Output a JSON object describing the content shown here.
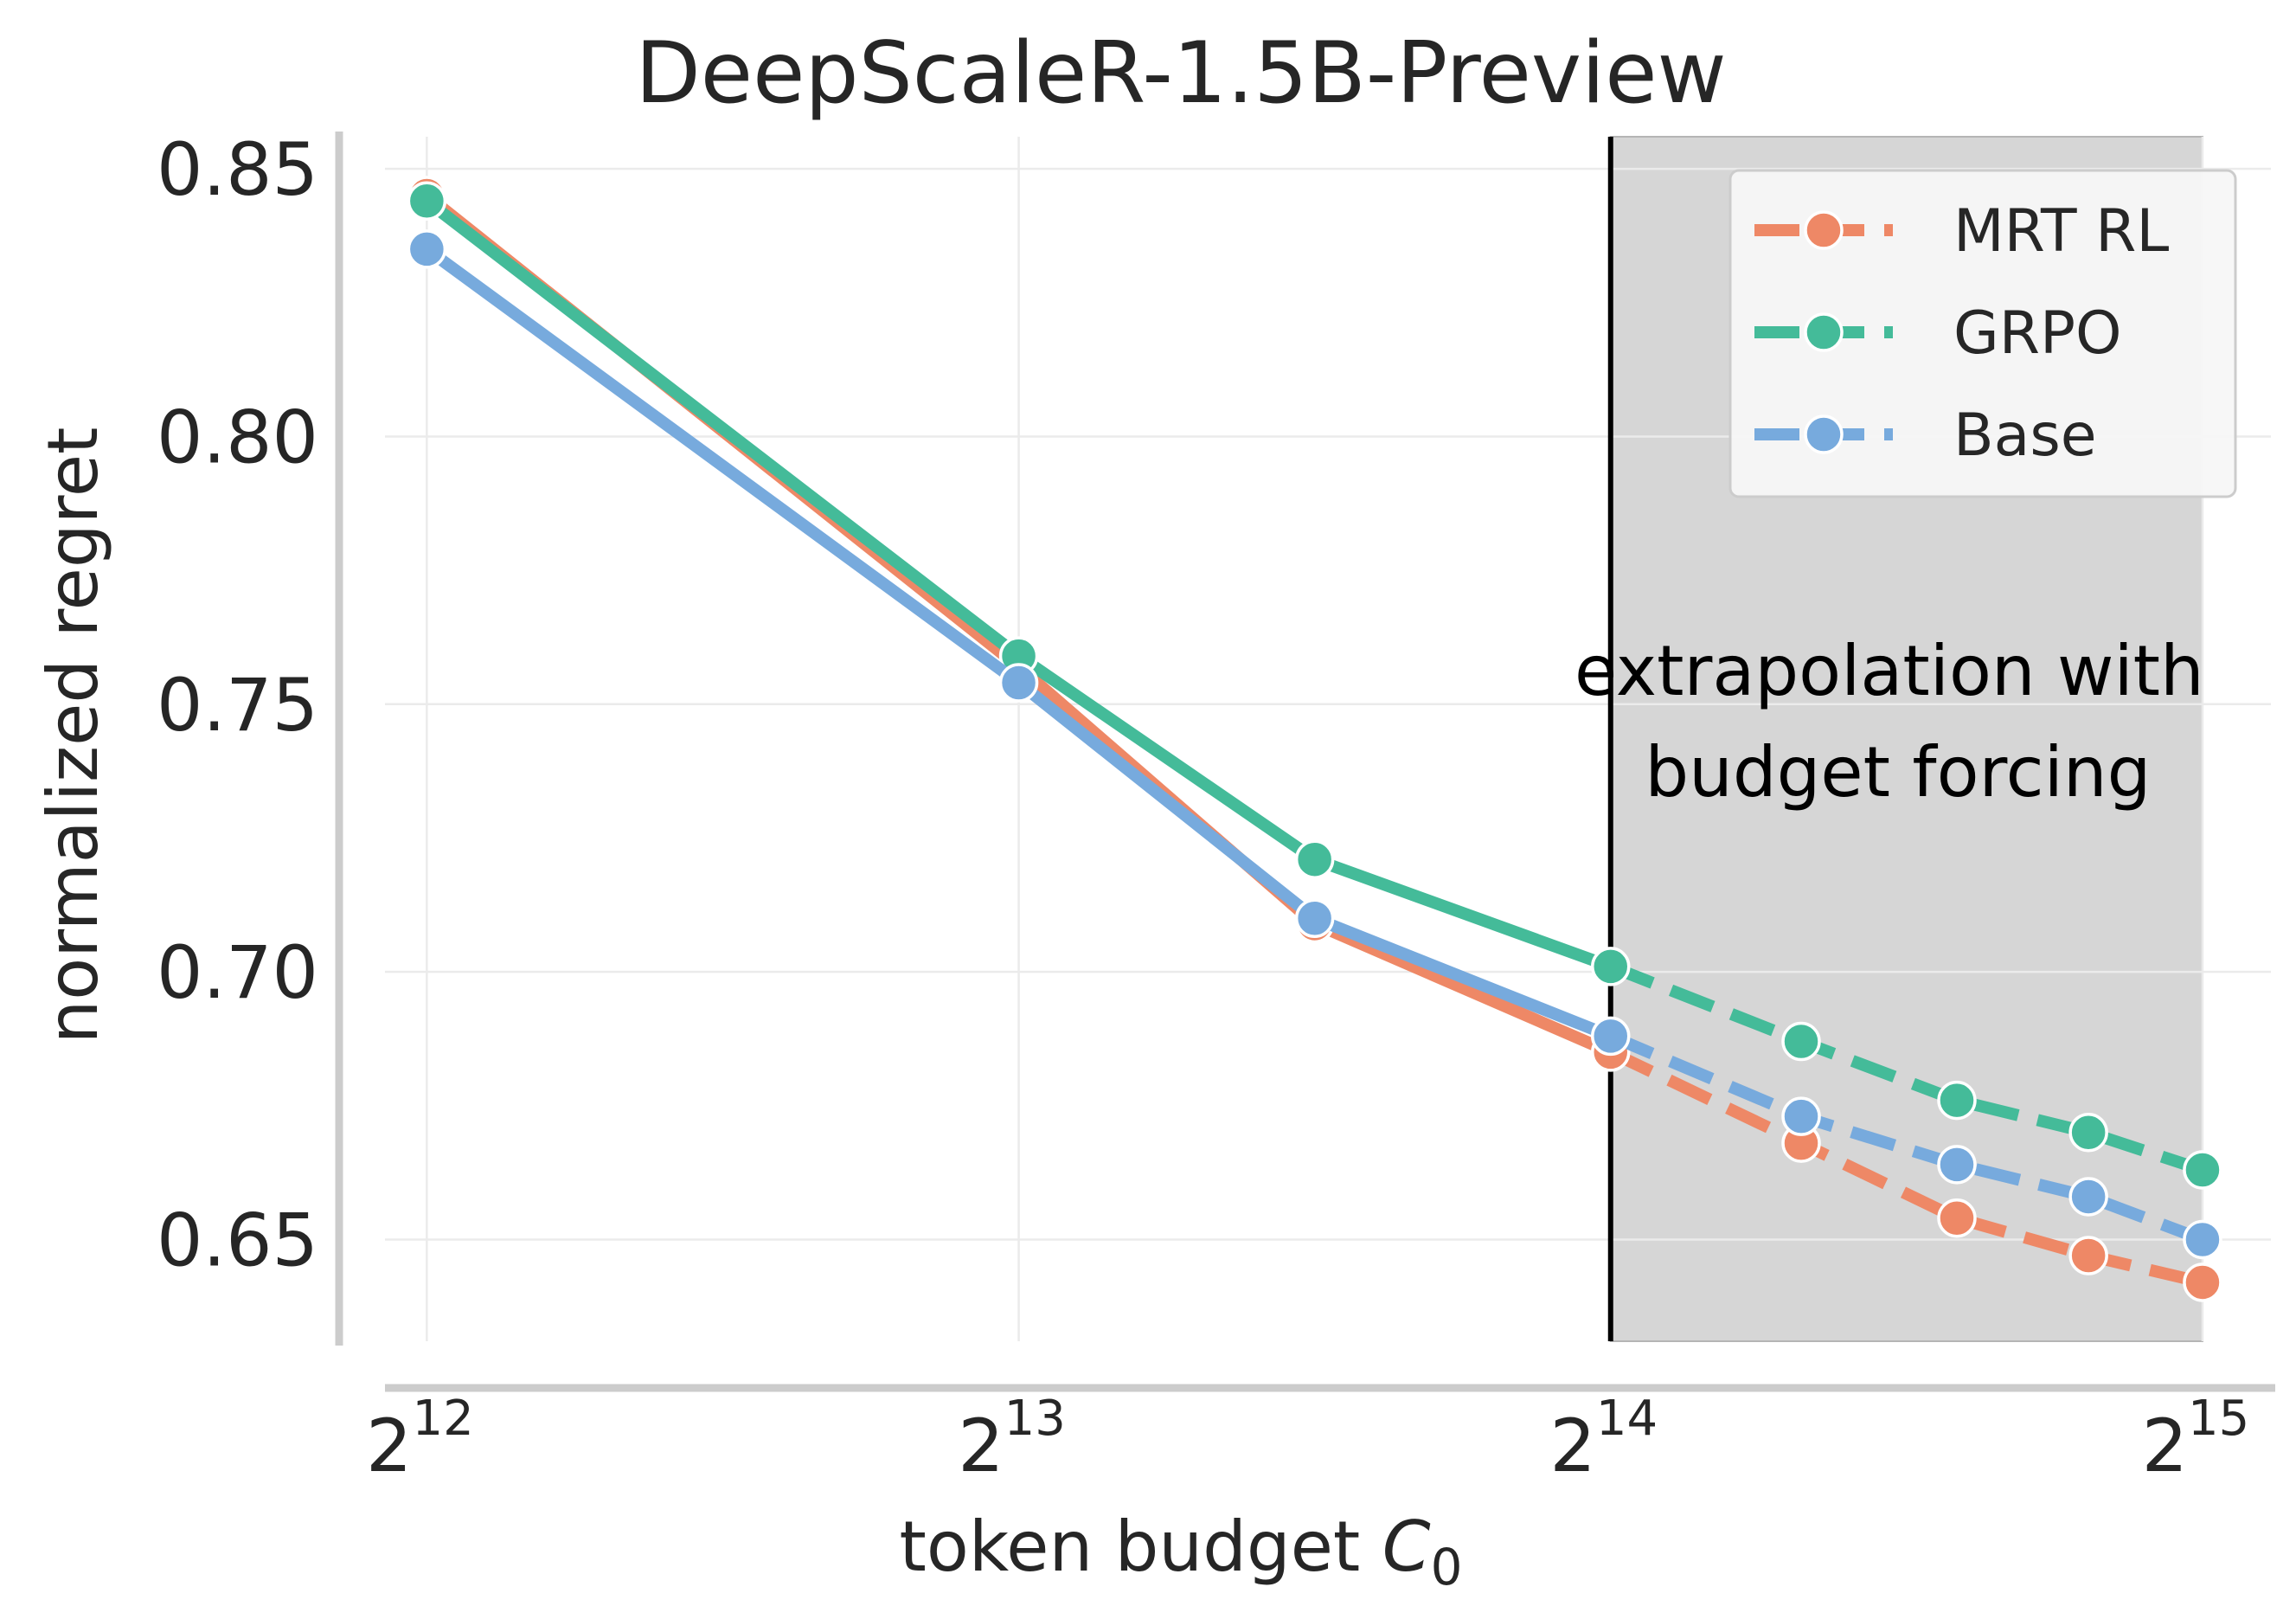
{
  "chart_data": {
    "type": "line",
    "title": "DeepScaleR-1.5B-Preview",
    "xlabel": "token budget",
    "xlabel_math": "C",
    "xlabel_math_sub": "0",
    "ylabel": "normalized regret",
    "x_scale": "log2",
    "xlim": [
      3700,
      35500
    ],
    "ylim": [
      0.631,
      0.856
    ],
    "x_ticks": [
      {
        "value": 4096,
        "base": "2",
        "exp": "12"
      },
      {
        "value": 8192,
        "base": "2",
        "exp": "13"
      },
      {
        "value": 16384,
        "base": "2",
        "exp": "14"
      },
      {
        "value": 32768,
        "base": "2",
        "exp": "15"
      }
    ],
    "y_ticks": [
      {
        "value": 0.65,
        "label": "0.65"
      },
      {
        "value": 0.7,
        "label": "0.70"
      },
      {
        "value": 0.75,
        "label": "0.75"
      },
      {
        "value": 0.8,
        "label": "0.80"
      },
      {
        "value": 0.85,
        "label": "0.85"
      }
    ],
    "grid": true,
    "x": [
      4096,
      8192,
      11585,
      16384,
      20480,
      24576,
      28672,
      32768
    ],
    "solid_until_index": 3,
    "series": [
      {
        "name": "MRT RL",
        "color": "#ee8866",
        "values": [
          0.845,
          0.757,
          0.709,
          0.685,
          0.668,
          0.654,
          0.647,
          0.642
        ]
      },
      {
        "name": "GRPO",
        "color": "#44bb99",
        "values": [
          0.844,
          0.759,
          0.721,
          0.701,
          0.687,
          0.676,
          0.67,
          0.663
        ]
      },
      {
        "name": "Base",
        "color": "#77aadd",
        "values": [
          0.835,
          0.754,
          0.71,
          0.688,
          0.673,
          0.664,
          0.658,
          0.65
        ]
      }
    ],
    "shaded_region": {
      "x_start": 16384,
      "x_end": 32768,
      "color": "#d6d6d6"
    },
    "vertical_line_x": 16384,
    "annotation": {
      "line1": "extrapolation with",
      "line2": "budget forcing"
    },
    "legend": {
      "position": "upper-right"
    }
  }
}
